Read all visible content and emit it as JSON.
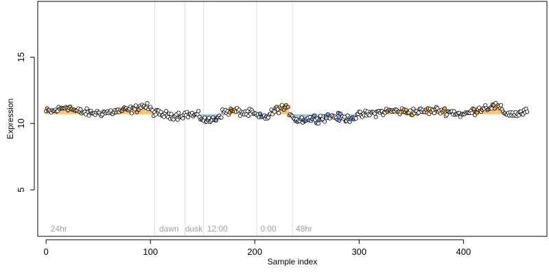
{
  "chart_data": {
    "type": "scatter",
    "title": "",
    "xlabel": "Sample index",
    "ylabel": "Expression",
    "xlim": [
      -8,
      480
    ],
    "ylim": [
      1.5,
      19.2
    ],
    "x_ticks": [
      0,
      100,
      200,
      300,
      400
    ],
    "y_ticks": [
      5,
      10,
      15
    ],
    "grid": false,
    "legend": "none",
    "colors": {
      "point_fill": "#ffffff",
      "point_edge": "#000000",
      "high_fill": "#f5b041",
      "low_fill": "#7aa6e6",
      "high_band": "#f5c57a",
      "low_band": "#9fc0ee",
      "vline": "#dddddd",
      "annotation": "#9e9e9e"
    },
    "vlines": [
      104,
      133,
      151,
      202,
      236
    ],
    "annotations": [
      {
        "x": 3,
        "text": "24hr"
      },
      {
        "x": 107,
        "text": "dawn"
      },
      {
        "x": 132,
        "text": "dusk"
      },
      {
        "x": 153,
        "text": "12:00"
      },
      {
        "x": 204,
        "text": "0:00"
      },
      {
        "x": 238,
        "text": "48hr"
      }
    ],
    "baseline": 10.7,
    "band_threshold": 0.2,
    "anchors": [
      [
        0,
        10.9
      ],
      [
        6,
        10.9
      ],
      [
        14,
        11.1
      ],
      [
        20,
        11.3
      ],
      [
        28,
        10.95
      ],
      [
        40,
        10.8
      ],
      [
        50,
        10.8
      ],
      [
        62,
        10.85
      ],
      [
        75,
        11.0
      ],
      [
        85,
        11.05
      ],
      [
        92,
        11.35
      ],
      [
        98,
        11.2
      ],
      [
        104,
        10.8
      ],
      [
        114,
        10.65
      ],
      [
        125,
        10.6
      ],
      [
        135,
        10.7
      ],
      [
        145,
        10.6
      ],
      [
        155,
        10.15
      ],
      [
        162,
        10.35
      ],
      [
        170,
        10.85
      ],
      [
        180,
        10.95
      ],
      [
        190,
        10.8
      ],
      [
        198,
        10.75
      ],
      [
        205,
        10.45
      ],
      [
        212,
        10.5
      ],
      [
        218,
        10.9
      ],
      [
        225,
        11.2
      ],
      [
        232,
        11.0
      ],
      [
        240,
        10.25
      ],
      [
        250,
        10.35
      ],
      [
        262,
        10.4
      ],
      [
        275,
        10.55
      ],
      [
        288,
        10.35
      ],
      [
        300,
        10.6
      ],
      [
        315,
        10.8
      ],
      [
        330,
        10.95
      ],
      [
        345,
        10.9
      ],
      [
        360,
        10.9
      ],
      [
        375,
        11.0
      ],
      [
        390,
        10.85
      ],
      [
        400,
        10.65
      ],
      [
        410,
        10.95
      ],
      [
        420,
        11.2
      ],
      [
        432,
        11.3
      ],
      [
        440,
        10.8
      ],
      [
        450,
        10.7
      ],
      [
        460,
        10.85
      ]
    ],
    "noise_amplitude": 0.28,
    "n_points": 462
  }
}
